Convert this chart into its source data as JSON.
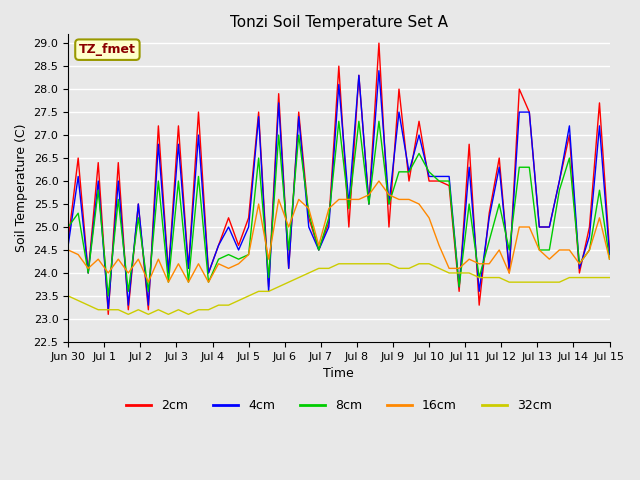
{
  "title": "Tonzi Soil Temperature Set A",
  "xlabel": "Time",
  "ylabel": "Soil Temperature (C)",
  "annotation": "TZ_fmet",
  "ylim": [
    22.5,
    29.2
  ],
  "x_labels": [
    "Jun 30",
    "Jul 1",
    "Jul 2",
    "Jul 3",
    "Jul 4",
    "Jul 5",
    "Jul 6",
    "Jul 7",
    "Jul 8",
    "Jul 9",
    "Jul 10",
    "Jul 11",
    "Jul 12",
    "Jul 13",
    "Jul 14",
    "Jul 15"
  ],
  "colors": {
    "2cm": "#ff0000",
    "4cm": "#0000ff",
    "8cm": "#00cc00",
    "16cm": "#ff8800",
    "32cm": "#cccc00"
  },
  "series": {
    "2cm": [
      24.7,
      26.5,
      24.0,
      26.4,
      23.1,
      26.4,
      23.2,
      25.5,
      23.2,
      27.2,
      24.0,
      27.2,
      24.1,
      27.5,
      24.0,
      24.6,
      25.2,
      24.6,
      25.2,
      27.5,
      23.7,
      27.9,
      24.1,
      27.5,
      25.2,
      24.5,
      25.1,
      28.5,
      25.0,
      28.3,
      25.5,
      29.0,
      25.0,
      28.0,
      26.0,
      27.3,
      26.0,
      26.0,
      25.9,
      23.6,
      26.8,
      23.3,
      25.3,
      26.5,
      24.0,
      28.0,
      27.5,
      25.0,
      25.0,
      26.0,
      27.0,
      24.0,
      25.0,
      27.7,
      24.5
    ],
    "4cm": [
      24.6,
      26.1,
      24.0,
      26.0,
      23.2,
      26.0,
      23.3,
      25.5,
      23.3,
      26.8,
      24.0,
      26.8,
      24.1,
      27.0,
      24.0,
      24.6,
      25.0,
      24.5,
      25.0,
      27.4,
      23.6,
      27.7,
      24.1,
      27.4,
      25.0,
      24.5,
      25.0,
      28.1,
      25.5,
      28.3,
      25.5,
      28.4,
      25.5,
      27.5,
      26.2,
      27.0,
      26.1,
      26.1,
      26.1,
      23.7,
      26.3,
      23.6,
      25.2,
      26.3,
      24.1,
      27.5,
      27.5,
      25.0,
      25.0,
      26.0,
      27.2,
      24.1,
      24.8,
      27.2,
      24.4
    ],
    "8cm": [
      25.0,
      25.3,
      24.0,
      25.8,
      23.5,
      25.6,
      23.6,
      25.2,
      23.6,
      26.0,
      23.8,
      26.0,
      23.8,
      26.1,
      23.8,
      24.3,
      24.4,
      24.3,
      24.4,
      26.5,
      23.9,
      27.0,
      24.5,
      27.0,
      25.3,
      24.5,
      25.2,
      27.3,
      25.4,
      27.3,
      25.5,
      27.3,
      25.5,
      26.2,
      26.2,
      26.6,
      26.2,
      26.0,
      26.0,
      23.7,
      25.5,
      23.9,
      24.7,
      25.5,
      24.5,
      26.3,
      26.3,
      24.5,
      24.5,
      25.8,
      26.5,
      24.2,
      24.5,
      25.8,
      24.3
    ],
    "16cm": [
      24.5,
      24.4,
      24.1,
      24.3,
      24.0,
      24.3,
      24.0,
      24.3,
      23.8,
      24.3,
      23.8,
      24.2,
      23.8,
      24.2,
      23.8,
      24.2,
      24.1,
      24.2,
      24.4,
      25.5,
      24.3,
      25.6,
      25.0,
      25.6,
      25.4,
      24.6,
      25.4,
      25.6,
      25.6,
      25.6,
      25.7,
      26.0,
      25.7,
      25.6,
      25.6,
      25.5,
      25.2,
      24.6,
      24.1,
      24.1,
      24.3,
      24.2,
      24.2,
      24.5,
      24.0,
      25.0,
      25.0,
      24.5,
      24.3,
      24.5,
      24.5,
      24.2,
      24.5,
      25.2,
      24.3
    ],
    "32cm": [
      23.5,
      23.4,
      23.3,
      23.2,
      23.2,
      23.2,
      23.1,
      23.2,
      23.1,
      23.2,
      23.1,
      23.2,
      23.1,
      23.2,
      23.2,
      23.3,
      23.3,
      23.4,
      23.5,
      23.6,
      23.6,
      23.7,
      23.8,
      23.9,
      24.0,
      24.1,
      24.1,
      24.2,
      24.2,
      24.2,
      24.2,
      24.2,
      24.2,
      24.1,
      24.1,
      24.2,
      24.2,
      24.1,
      24.0,
      24.0,
      24.0,
      23.9,
      23.9,
      23.9,
      23.8,
      23.8,
      23.8,
      23.8,
      23.8,
      23.8,
      23.9,
      23.9,
      23.9,
      23.9,
      23.9
    ]
  },
  "figsize": [
    6.4,
    4.8
  ],
  "dpi": 100,
  "bg_color": "#e8e8e8",
  "title_fontsize": 11,
  "axis_label_fontsize": 9,
  "tick_fontsize": 8,
  "legend_fontsize": 9,
  "n_days": 16
}
